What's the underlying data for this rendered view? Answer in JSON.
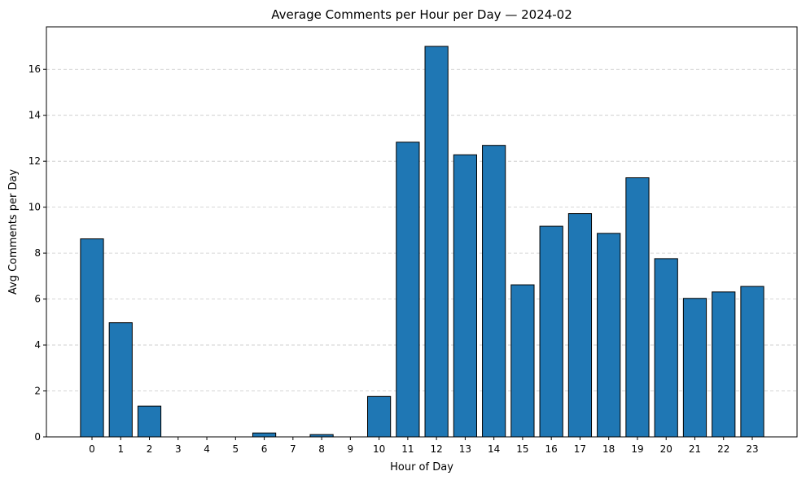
{
  "chart_data": {
    "type": "bar",
    "title": "Average Comments per Hour per Day — 2024-02",
    "xlabel": "Hour of Day",
    "ylabel": "Avg Comments per Day",
    "categories": [
      "0",
      "1",
      "2",
      "3",
      "4",
      "5",
      "6",
      "7",
      "8",
      "9",
      "10",
      "11",
      "12",
      "13",
      "14",
      "15",
      "16",
      "17",
      "18",
      "19",
      "20",
      "21",
      "22",
      "23"
    ],
    "values": [
      8.62,
      4.97,
      1.34,
      0.0,
      0.0,
      0.0,
      0.17,
      0.0,
      0.1,
      0.0,
      1.76,
      12.83,
      17.0,
      12.28,
      12.69,
      6.62,
      9.17,
      9.72,
      8.86,
      11.28,
      7.76,
      6.03,
      6.31,
      6.55
    ],
    "ylim": [
      0,
      17.85
    ],
    "yticks": [
      0,
      2,
      4,
      6,
      8,
      10,
      12,
      14,
      16
    ],
    "grid": "y-dashed",
    "bar_color": "#1f77b4",
    "edge_color": "#000000"
  }
}
